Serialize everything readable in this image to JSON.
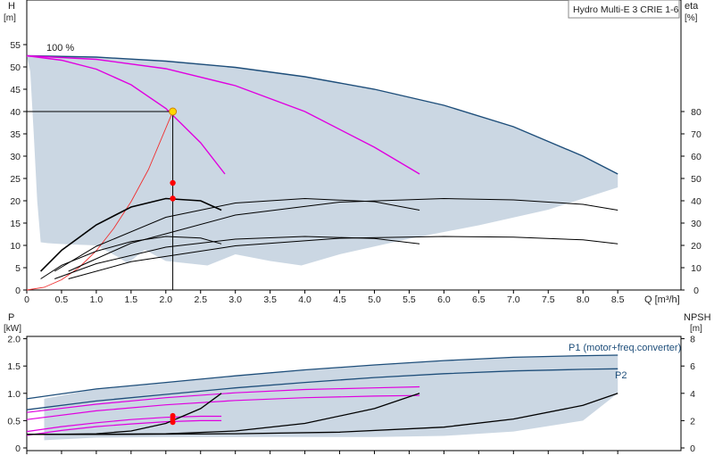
{
  "chart_data": [
    {
      "type": "line",
      "title": "Hydro Multi-E 3 CRIE 1-6",
      "ylabel_left": "H",
      "ylabel_left_unit": "[m]",
      "ylabel_right": "eta",
      "ylabel_right_unit": "[%]",
      "xlabel": "Q [m³/h]",
      "xlim": [
        0,
        9
      ],
      "ylim_left": [
        0,
        60
      ],
      "ylim_right": [
        0,
        130
      ],
      "x_ticks": [
        "0",
        "0.5",
        "1.0",
        "1.5",
        "2.0",
        "2.5",
        "3.0",
        "3.5",
        "4.0",
        "4.5",
        "5.0",
        "5.5",
        "6.0",
        "6.5",
        "7.0",
        "7.5",
        "8.0",
        "8.5"
      ],
      "x_tick_values": [
        0,
        0.5,
        1,
        1.5,
        2,
        2.5,
        3,
        3.5,
        4,
        4.5,
        5,
        5.5,
        6,
        6.5,
        7,
        7.5,
        8,
        8.5
      ],
      "y_left_ticks": [
        0,
        5,
        10,
        15,
        20,
        25,
        30,
        35,
        40,
        45,
        50,
        55
      ],
      "y_right_ticks": [
        0,
        10,
        20,
        30,
        40,
        50,
        60,
        70,
        80
      ],
      "annotation": "100 %",
      "duty_point": {
        "q": 2.1,
        "h": 40
      },
      "area_colour": "#cbd7e3",
      "series": [
        {
          "color": "#1e4e7a",
          "x": [
            0,
            1,
            2,
            3,
            4,
            5,
            6,
            7,
            8,
            8.5
          ],
          "y": [
            52.5,
            52.2,
            51.3,
            49.9,
            47.8,
            45,
            41.4,
            36.6,
            30,
            26
          ]
        },
        {
          "color": "#e000e0",
          "x": [
            0,
            0.5,
            1,
            1.5,
            2,
            2.5,
            2.85
          ],
          "y": [
            52.5,
            51.5,
            49.5,
            46,
            40.7,
            33,
            26
          ]
        },
        {
          "color": "#e000e0",
          "x": [
            0,
            1,
            2,
            3,
            4,
            5,
            5.65
          ],
          "y": [
            52.5,
            51.7,
            49.6,
            45.8,
            40,
            32,
            26
          ]
        },
        {
          "color": "#f03030",
          "x": [
            0,
            0.25,
            0.5,
            0.75,
            1,
            1.25,
            1.5,
            1.75,
            2.1
          ],
          "y": [
            0,
            0.6,
            2.3,
            5,
            8.8,
            13.8,
            19.8,
            27,
            40
          ]
        },
        {
          "color": "#000000",
          "x": [
            0.2,
            0.5,
            1,
            1.5,
            2,
            2.5,
            2.8
          ],
          "y": [
            5,
            11.1,
            17.4,
            21.7,
            24,
            23.3,
            20.7
          ]
        },
        {
          "color": "#000000",
          "x": [
            0.4,
            1,
            2,
            3,
            4,
            5,
            5.65
          ],
          "y": [
            5,
            11.8,
            19.2,
            22.8,
            24,
            23.1,
            20.7
          ]
        },
        {
          "color": "#000000",
          "x": [
            0.6,
            1.5,
            3,
            4.5,
            6,
            7,
            8,
            8.5
          ],
          "y": [
            5,
            12.7,
            19.8,
            23.2,
            24,
            23.7,
            22.5,
            20.7
          ]
        },
        {
          "color": "#000000",
          "x": [
            0.2,
            0.5,
            1,
            1.5,
            2,
            2.5,
            2.8
          ],
          "y": [
            4.2,
            8.9,
            14.6,
            18.6,
            20.5,
            20,
            17.9
          ]
        },
        {
          "color": "#000000",
          "x": [
            0.4,
            1,
            2,
            3,
            4,
            5,
            5.65
          ],
          "y": [
            4.2,
            9.8,
            16.3,
            19.5,
            20.5,
            19.8,
            17.9
          ]
        },
        {
          "color": "#000000",
          "x": [
            0.6,
            1.5,
            3,
            4.5,
            6,
            7,
            8,
            8.5
          ],
          "y": [
            4.2,
            10.5,
            16.8,
            19.7,
            20.5,
            20.2,
            19.2,
            17.9
          ]
        }
      ],
      "markers": [
        {
          "x": 2.1,
          "y": 24,
          "color": "#ff0000"
        },
        {
          "x": 2.1,
          "y": 20.5,
          "color": "#ff0000"
        }
      ]
    },
    {
      "type": "line",
      "ylabel_left": "P",
      "ylabel_left_unit": "[kW]",
      "ylabel_right": "NPSH",
      "ylabel_right_unit": "[m]",
      "xlim": [
        0,
        9
      ],
      "ylim_left": [
        0,
        2.5
      ],
      "ylim_right": [
        0,
        10
      ],
      "y_left_ticks": [
        "0",
        "0.5",
        "1.0",
        "1.5",
        "2.0"
      ],
      "y_left_tick_values": [
        0,
        0.5,
        1,
        1.5,
        2
      ],
      "y_right_ticks": [
        0,
        2,
        4,
        6,
        8
      ],
      "series_labels": [
        "P1 (motor+freq.converter)",
        "P2"
      ],
      "series": [
        {
          "name": "P1 (motor+freq.converter)",
          "color": "#1e4e7a",
          "x": [
            0,
            1,
            2,
            3,
            4,
            5,
            6,
            7,
            8,
            8.5
          ],
          "y": [
            0.9,
            1.08,
            1.2,
            1.32,
            1.43,
            1.52,
            1.6,
            1.66,
            1.69,
            1.7
          ]
        },
        {
          "name": "P2",
          "color": "#1e4e7a",
          "x": [
            0,
            1,
            2,
            3,
            4,
            5,
            6,
            7,
            8,
            8.5
          ],
          "y": [
            0.7,
            0.86,
            0.98,
            1.1,
            1.2,
            1.29,
            1.36,
            1.41,
            1.44,
            1.45
          ]
        },
        {
          "color": "#e000e0",
          "x": [
            0,
            0.5,
            1,
            1.5,
            2,
            2.5,
            2.8
          ],
          "y": [
            0.3,
            0.39,
            0.46,
            0.52,
            0.56,
            0.58,
            0.58
          ]
        },
        {
          "color": "#e000e0",
          "x": [
            0,
            0.5,
            1,
            1.5,
            2,
            2.5,
            2.8
          ],
          "y": [
            0.23,
            0.32,
            0.39,
            0.44,
            0.48,
            0.5,
            0.5
          ]
        },
        {
          "color": "#e000e0",
          "x": [
            0,
            1,
            2,
            3,
            4,
            5,
            5.65
          ],
          "y": [
            0.65,
            0.8,
            0.92,
            1.01,
            1.07,
            1.1,
            1.12
          ]
        },
        {
          "color": "#e000e0",
          "x": [
            0,
            1,
            2,
            3,
            4,
            5,
            5.65
          ],
          "y": [
            0.52,
            0.68,
            0.79,
            0.87,
            0.92,
            0.95,
            0.96
          ]
        },
        {
          "color": "#000000",
          "x": [
            0,
            0.5,
            1,
            1.5,
            2,
            2.5,
            2.8
          ],
          "y": [
            0.25,
            0.25,
            0.26,
            0.31,
            0.45,
            0.72,
            1
          ]
        },
        {
          "color": "#000000",
          "x": [
            0,
            1,
            2,
            3,
            4,
            5,
            5.65
          ],
          "y": [
            0.25,
            0.25,
            0.26,
            0.31,
            0.45,
            0.72,
            1
          ]
        },
        {
          "color": "#000000",
          "x": [
            0,
            1.5,
            3,
            4.5,
            6,
            7,
            8,
            8.5
          ],
          "y": [
            0.25,
            0.25,
            0.26,
            0.29,
            0.38,
            0.53,
            0.78,
            1
          ]
        }
      ],
      "markers": [
        {
          "x": 2.1,
          "y": 0.59,
          "color": "#ff0000"
        },
        {
          "x": 2.1,
          "y": 0.53,
          "color": "#ff0000"
        },
        {
          "x": 2.1,
          "y": 0.47,
          "color": "#ff0000"
        }
      ]
    }
  ]
}
